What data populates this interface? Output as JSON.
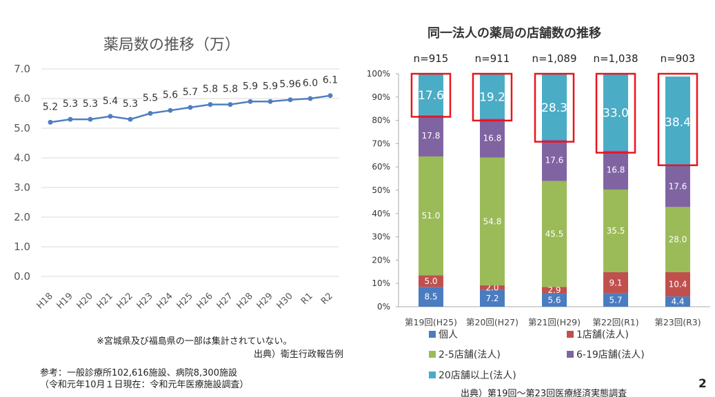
{
  "chart_data": [
    {
      "type": "line",
      "title": "薬局数の推移（万）",
      "categories": [
        "H18",
        "H19",
        "H20",
        "H21",
        "H22",
        "H23",
        "H24",
        "H25",
        "H26",
        "H27",
        "H28",
        "H29",
        "H30",
        "R1",
        "R2"
      ],
      "values": [
        5.2,
        5.3,
        5.3,
        5.4,
        5.3,
        5.5,
        5.6,
        5.7,
        5.8,
        5.8,
        5.9,
        5.9,
        5.96,
        6.0,
        6.1
      ],
      "data_labels": [
        "5.2",
        "5.3",
        "5.3",
        "5.4",
        "5.3",
        "5.5",
        "5.6",
        "5.7",
        "5.8",
        "5.8",
        "5.9",
        "5.9",
        "5.96",
        "6.0",
        "6.1"
      ],
      "ylim": [
        0,
        7
      ],
      "yticks": [
        "0.0",
        "1.0",
        "2.0",
        "3.0",
        "4.0",
        "5.0",
        "6.0",
        "7.0"
      ],
      "grid": true,
      "color": "#4f7fbf"
    },
    {
      "type": "bar",
      "stacked": true,
      "title": "同一法人の薬局の店舗数の推移",
      "categories": [
        "第19回(H25)",
        "第20回(H27)",
        "第21回(H29)",
        "第22回(R1)",
        "第23回(R3)"
      ],
      "n_labels": [
        "n=915",
        "n=911",
        "n=1,089",
        "n=1,038",
        "n=903"
      ],
      "ylim": [
        0,
        100
      ],
      "yticks": [
        "0%",
        "10%",
        "20%",
        "30%",
        "40%",
        "50%",
        "60%",
        "70%",
        "80%",
        "90%",
        "100%"
      ],
      "legend_position": "bottom",
      "series": [
        {
          "name": "個人",
          "color": "#4a7cc0",
          "values": [
            8.5,
            7.2,
            5.6,
            5.7,
            4.4
          ]
        },
        {
          "name": "1店舗(法人)",
          "color": "#c0504d",
          "values": [
            5.0,
            2.0,
            2.9,
            9.1,
            10.4
          ]
        },
        {
          "name": "2-5店舗(法人)",
          "color": "#9bbb59",
          "values": [
            51.0,
            54.8,
            45.5,
            35.5,
            28.0
          ]
        },
        {
          "name": "6-19店舗(法人)",
          "color": "#8064a2",
          "values": [
            17.8,
            16.8,
            17.6,
            16.8,
            17.6
          ]
        },
        {
          "name": "20店舗以上(法人)",
          "color": "#4bacc6",
          "values": [
            17.6,
            19.2,
            28.3,
            33.0,
            38.4
          ]
        }
      ],
      "highlight_color": "#e8141b"
    }
  ],
  "notes": {
    "left_note": "※宮城県及び福島県の一部は集計されていない。",
    "left_source": "出典）衛生行政報告例",
    "ref_line1": "参考：一般診療所102,616施設、病院8,300施設",
    "ref_line2": "（令和元年10月１日現在：令和元年医療施設調査）",
    "right_source": "出典）第19回～第23回医療経済実態調査",
    "page_number": "2"
  }
}
